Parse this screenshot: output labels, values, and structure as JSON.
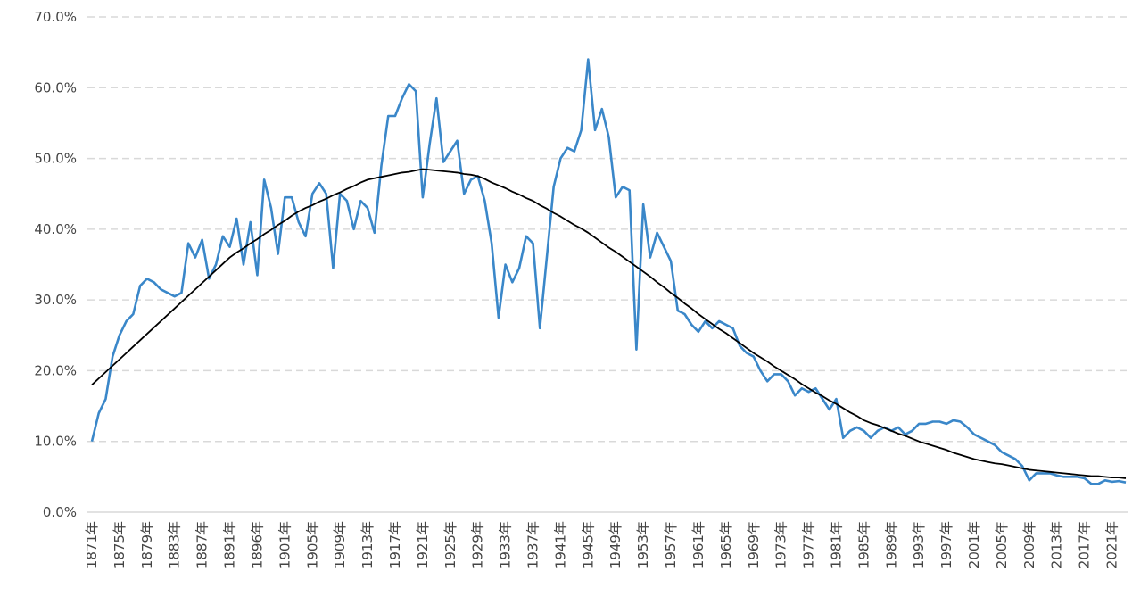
{
  "chart_data": {
    "type": "line",
    "categories": [
      "1871年",
      null,
      null,
      null,
      "1875年",
      null,
      null,
      null,
      "1879年",
      null,
      null,
      null,
      "1883年",
      null,
      null,
      null,
      "1887年",
      null,
      null,
      null,
      "1891年",
      null,
      null,
      null,
      "1896年",
      null,
      null,
      null,
      "1901年",
      null,
      null,
      null,
      "1905年",
      null,
      null,
      null,
      "1909年",
      null,
      null,
      null,
      "1913年",
      null,
      null,
      null,
      "1917年",
      null,
      null,
      null,
      "1921年",
      null,
      null,
      null,
      "1925年",
      null,
      null,
      null,
      "1929年",
      null,
      null,
      null,
      "1933年",
      null,
      null,
      null,
      "1937年",
      null,
      null,
      null,
      "1941年",
      null,
      null,
      null,
      "1945年",
      null,
      null,
      null,
      "1949年",
      null,
      null,
      null,
      "1953年",
      null,
      null,
      null,
      "1957年",
      null,
      null,
      null,
      "1961年",
      null,
      null,
      null,
      "1965年",
      null,
      null,
      null,
      "1969年",
      null,
      null,
      null,
      "1973年",
      null,
      null,
      null,
      "1977年",
      null,
      null,
      null,
      "1981年",
      null,
      null,
      null,
      "1985年",
      null,
      null,
      null,
      "1989年",
      null,
      null,
      null,
      "1993年",
      null,
      null,
      null,
      "1997年",
      null,
      null,
      null,
      "2001年",
      null,
      null,
      null,
      "2005年",
      null,
      null,
      null,
      "2009年",
      null,
      null,
      null,
      "2013年",
      null,
      null,
      null,
      "2017年",
      null,
      null,
      null,
      "2021年",
      null,
      null
    ],
    "series": [
      {
        "color": "#3a87c9",
        "values": [
          10,
          14,
          16,
          22,
          25,
          27,
          28,
          32,
          33,
          32.5,
          31.5,
          31,
          30.5,
          31,
          38,
          36,
          38.5,
          33,
          35,
          39,
          37.5,
          41.5,
          35,
          41,
          33.5,
          47,
          43,
          36.5,
          44.5,
          44.5,
          41,
          39,
          45,
          46.5,
          45,
          34.5,
          45,
          44,
          40,
          44,
          43,
          39.5,
          49,
          56,
          56,
          58.5,
          60.5,
          59.5,
          44.5,
          52,
          58.5,
          49.5,
          51,
          52.5,
          45,
          47,
          47.5,
          44,
          38,
          27.5,
          35,
          32.5,
          34.5,
          39,
          38,
          26,
          36,
          46,
          50,
          51.5,
          51,
          54,
          64,
          54,
          57,
          53,
          44.5,
          46,
          45.5,
          23,
          43.5,
          36,
          39.5,
          37.5,
          35.5,
          28.5,
          28,
          26.5,
          25.5,
          27,
          26,
          27,
          26.5,
          26,
          23.5,
          22.5,
          22,
          20,
          18.5,
          19.5,
          19.5,
          18.5,
          16.5,
          17.5,
          17,
          17.5,
          16,
          14.5,
          16,
          10.5,
          11.5,
          12,
          11.5,
          10.5,
          11.5,
          12,
          11.5,
          12,
          11,
          11.5,
          12.5,
          12.5,
          12.8,
          12.8,
          12.5,
          13,
          12.8,
          12,
          11,
          10.5,
          10,
          9.5,
          8.5,
          8,
          7.5,
          6.5,
          4.5,
          5.5,
          5.5,
          5.5,
          5.2,
          5,
          5,
          5,
          4.8,
          4,
          4,
          4.5,
          4.3,
          4.4,
          4.2
        ]
      },
      {
        "color": "#000000",
        "values": [
          18,
          18.9,
          19.8,
          20.7,
          21.6,
          22.5,
          23.4,
          24.3,
          25.2,
          26.1,
          27,
          27.9,
          28.8,
          29.7,
          30.6,
          31.5,
          32.4,
          33.3,
          34.2,
          35.1,
          36,
          36.7,
          37.3,
          38,
          38.6,
          39.3,
          39.9,
          40.6,
          41.2,
          41.9,
          42.5,
          43,
          43.4,
          43.9,
          44.3,
          44.8,
          45.2,
          45.7,
          46.1,
          46.6,
          47,
          47.2,
          47.4,
          47.6,
          47.8,
          48,
          48.1,
          48.3,
          48.5,
          48.4,
          48.3,
          48.2,
          48.1,
          48,
          47.8,
          47.7,
          47.5,
          47.1,
          46.6,
          46.2,
          45.8,
          45.3,
          44.9,
          44.4,
          44,
          43.4,
          42.9,
          42.3,
          41.8,
          41.2,
          40.6,
          40.1,
          39.5,
          38.8,
          38.1,
          37.4,
          36.8,
          36.1,
          35.4,
          34.7,
          34,
          33.3,
          32.5,
          31.8,
          31,
          30.3,
          29.5,
          28.8,
          28,
          27.3,
          26.6,
          25.9,
          25.3,
          24.6,
          23.9,
          23.2,
          22.5,
          21.9,
          21.3,
          20.6,
          20,
          19.4,
          18.8,
          18.1,
          17.5,
          16.9,
          16.4,
          15.8,
          15.3,
          14.7,
          14.1,
          13.6,
          13,
          12.6,
          12.3,
          11.9,
          11.5,
          11.1,
          10.8,
          10.4,
          10,
          9.7,
          9.4,
          9.1,
          8.8,
          8.4,
          8.1,
          7.8,
          7.5,
          7.3,
          7.1,
          6.9,
          6.8,
          6.6,
          6.4,
          6.2,
          6,
          5.9,
          5.8,
          5.7,
          5.6,
          5.5,
          5.4,
          5.3,
          5.2,
          5.1,
          5.1,
          5,
          4.9,
          4.9,
          4.8
        ]
      }
    ],
    "ylim": [
      0,
      70
    ],
    "yticks": [
      {
        "value": 0,
        "label": "0.0%"
      },
      {
        "value": 10,
        "label": "10.0%"
      },
      {
        "value": 20,
        "label": "20.0%"
      },
      {
        "value": 30,
        "label": "30.0%"
      },
      {
        "value": 40,
        "label": "40.0%"
      },
      {
        "value": 50,
        "label": "50.0%"
      },
      {
        "value": 60,
        "label": "60.0%"
      },
      {
        "value": 70,
        "label": "70.0%"
      }
    ],
    "grid": true
  }
}
